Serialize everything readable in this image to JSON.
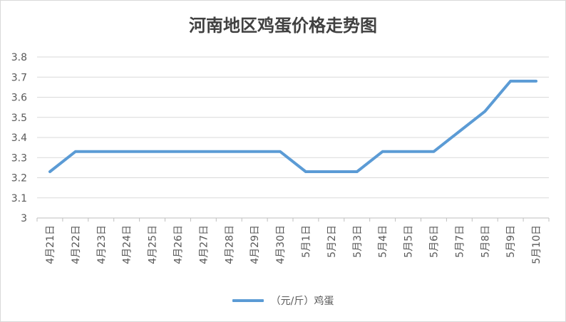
{
  "chart_data": {
    "type": "line",
    "title": "河南地区鸡蛋价格走势图",
    "categories": [
      "4月21日",
      "4月22日",
      "4月23日",
      "4月24日",
      "4月25日",
      "4月26日",
      "4月27日",
      "4月28日",
      "4月29日",
      "4月30日",
      "5月1日",
      "5月2日",
      "5月3日",
      "5月4日",
      "5月5日",
      "5月6日",
      "5月7日",
      "5月8日",
      "5月9日",
      "5月10日"
    ],
    "series": [
      {
        "name": "（元/斤）鸡蛋",
        "color": "#5B9BD5",
        "values": [
          3.23,
          3.33,
          3.33,
          3.33,
          3.33,
          3.33,
          3.33,
          3.33,
          3.33,
          3.33,
          3.23,
          3.23,
          3.23,
          3.33,
          3.33,
          3.33,
          3.43,
          3.53,
          3.68,
          3.68
        ]
      }
    ],
    "ylim": [
      3,
      3.8
    ],
    "yticks": [
      "3",
      "3.1",
      "3.2",
      "3.3",
      "3.4",
      "3.5",
      "3.6",
      "3.7",
      "3.8"
    ],
    "grid": true,
    "legend": "bottom"
  }
}
